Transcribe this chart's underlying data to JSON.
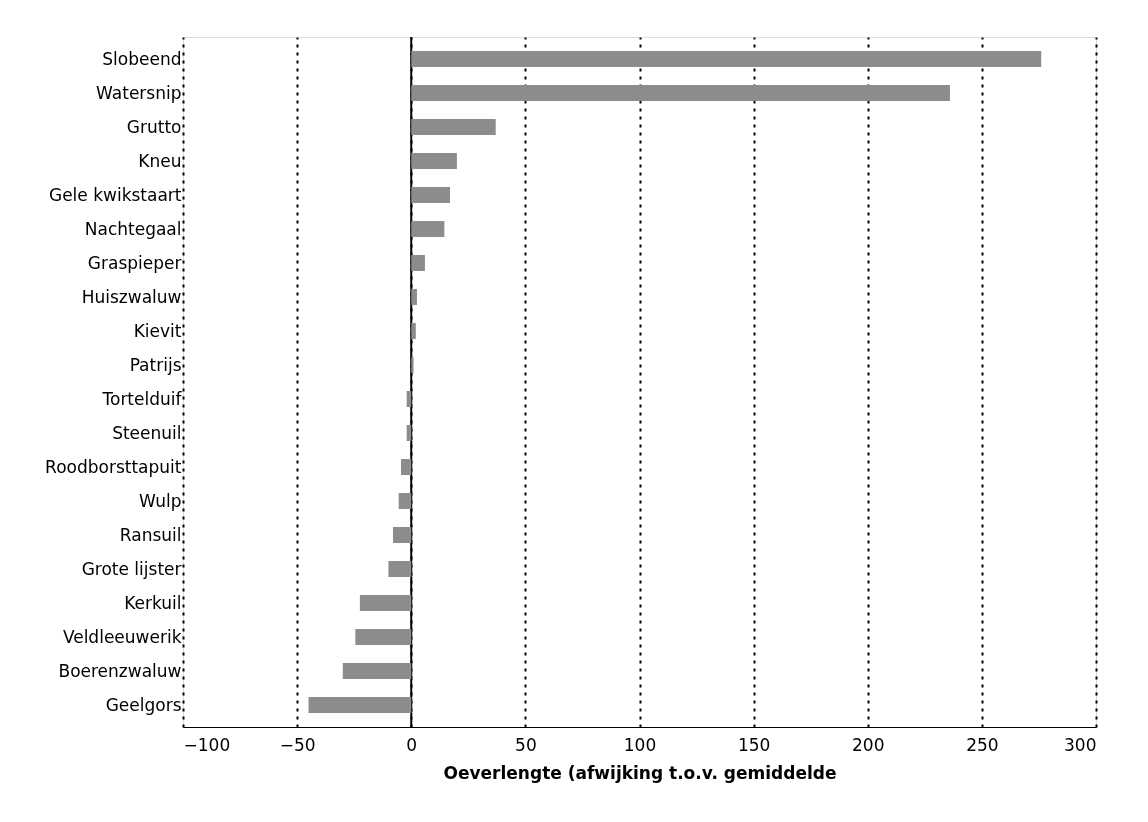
{
  "chart_data": {
    "type": "bar",
    "orientation": "horizontal",
    "xlabel": "Oeverlengte (afwijking t.o.v. gemiddelde",
    "categories": [
      "Slobeend",
      "Watersnip",
      "Grutto",
      "Kneu",
      "Gele kwikstaart",
      "Nachtegaal",
      "Graspieper",
      "Huiszwaluw",
      "Kievit",
      "Patrijs",
      "Tortelduif",
      "Steenuil",
      "Roodborsttapuit",
      "Wulp",
      "Ransuil",
      "Grote lijster",
      "Kerkuil",
      "Veldleeuwerik",
      "Boerenzwaluw",
      "Geelgors"
    ],
    "values": [
      276,
      236,
      37,
      20,
      17,
      14.5,
      6,
      2.5,
      2,
      1,
      -2,
      -2,
      -4.5,
      -5.5,
      -8,
      -10,
      -22.5,
      -24.5,
      -30,
      -45
    ],
    "color": "#8c8c8c",
    "xlim": [
      -100,
      300
    ],
    "xticks": [
      -100,
      -50,
      0,
      50,
      100,
      150,
      200,
      250,
      300
    ],
    "grid": "x",
    "ref_lines": [
      {
        "axis": "x",
        "value": 0,
        "color": "#000000",
        "line_style": "solid"
      }
    ]
  }
}
